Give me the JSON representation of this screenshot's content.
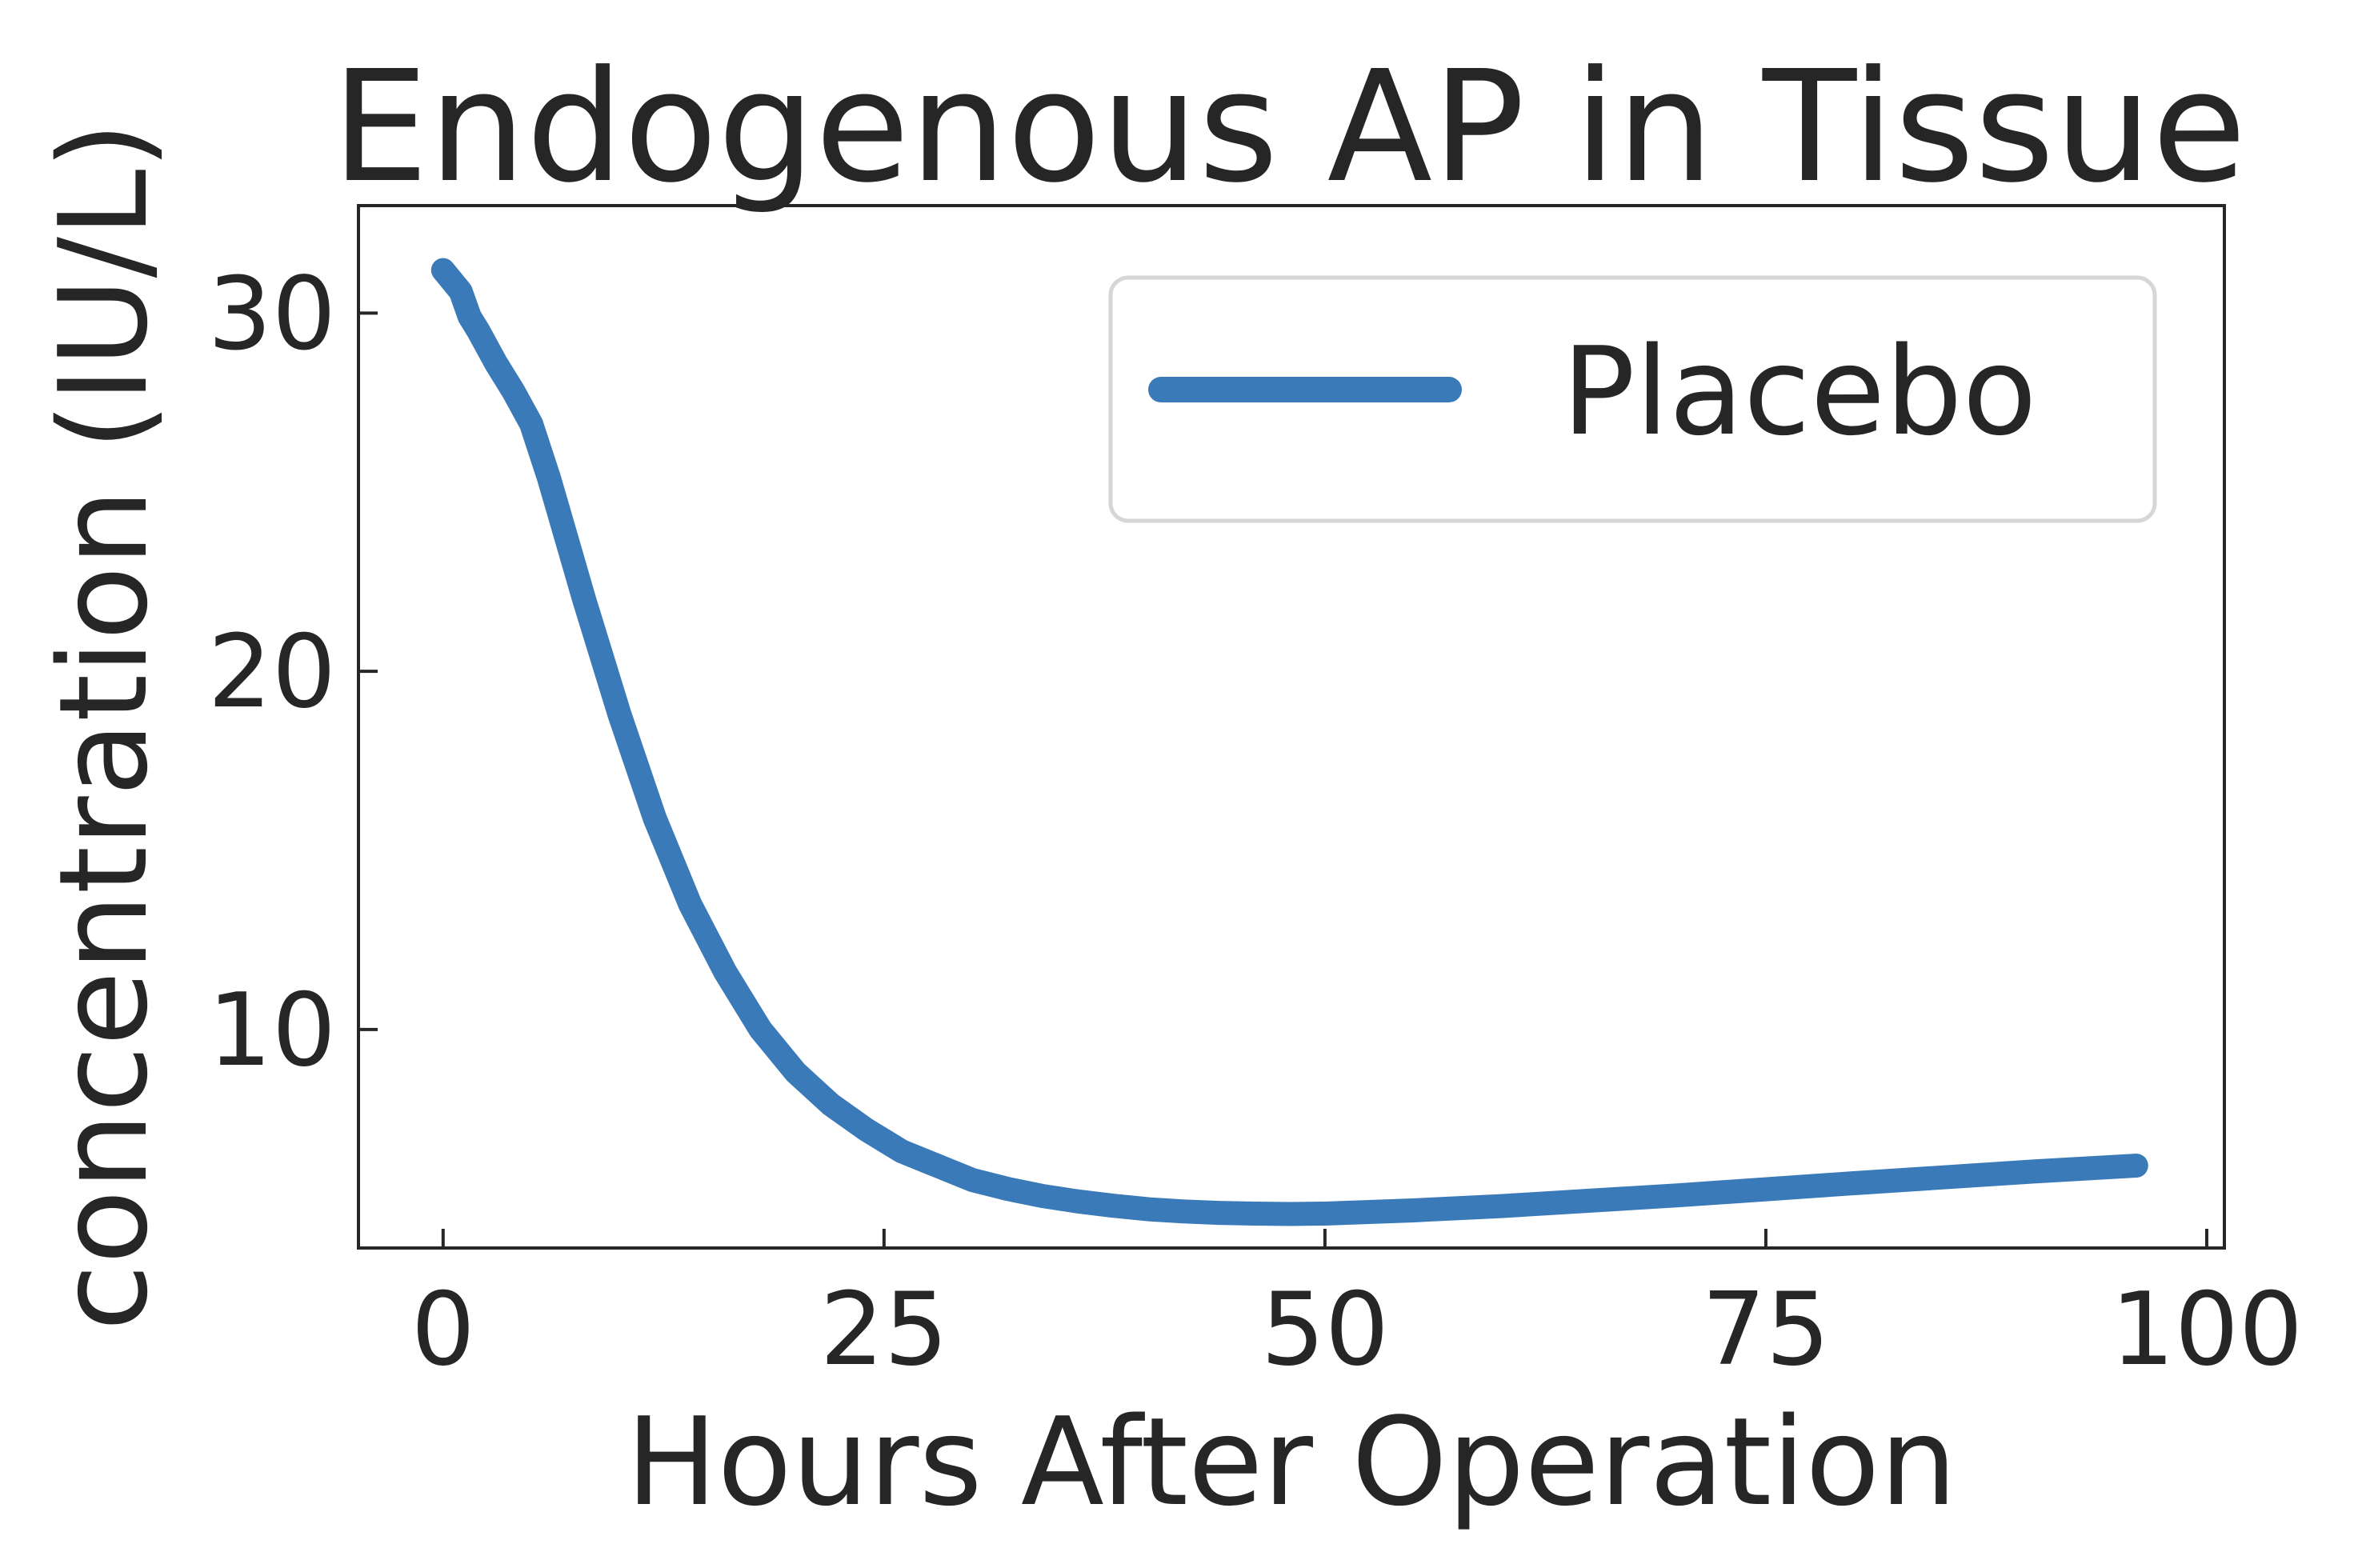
{
  "chart_data": {
    "type": "line",
    "title": "Endogenous AP in Tissue",
    "xlabel": "Hours After Operation",
    "ylabel": "concentration (IU/L)",
    "xlim": [
      -4.8,
      101
    ],
    "ylim": [
      3.9,
      33
    ],
    "xticks": [
      0,
      25,
      50,
      75,
      100
    ],
    "xtick_labels": [
      "0",
      "25",
      "50",
      "75",
      "100"
    ],
    "yticks": [
      10,
      20,
      30
    ],
    "ytick_labels": [
      "10",
      "20",
      "30"
    ],
    "grid": false,
    "legend": {
      "position": "top-right"
    },
    "series": [
      {
        "name": "Placebo",
        "color": "#3a7ab9",
        "x": [
          0,
          0.5,
          1,
          1.5,
          2,
          3,
          4,
          5,
          6,
          7,
          8,
          10,
          12,
          14,
          16,
          18,
          20,
          22,
          24,
          26,
          28,
          30,
          32,
          34,
          36,
          38,
          40,
          42,
          44,
          46,
          48,
          50,
          55,
          60,
          65,
          70,
          75,
          80,
          85,
          90,
          96
        ],
        "y": [
          31.2,
          30.9,
          30.6,
          29.9,
          29.5,
          28.6,
          27.8,
          26.9,
          25.4,
          23.7,
          22.0,
          18.8,
          15.9,
          13.5,
          11.6,
          10.0,
          8.8,
          7.9,
          7.2,
          6.6,
          6.2,
          5.8,
          5.55,
          5.35,
          5.2,
          5.08,
          4.98,
          4.92,
          4.88,
          4.86,
          4.85,
          4.86,
          4.95,
          5.07,
          5.22,
          5.37,
          5.54,
          5.71,
          5.87,
          6.03,
          6.2
        ]
      }
    ]
  }
}
